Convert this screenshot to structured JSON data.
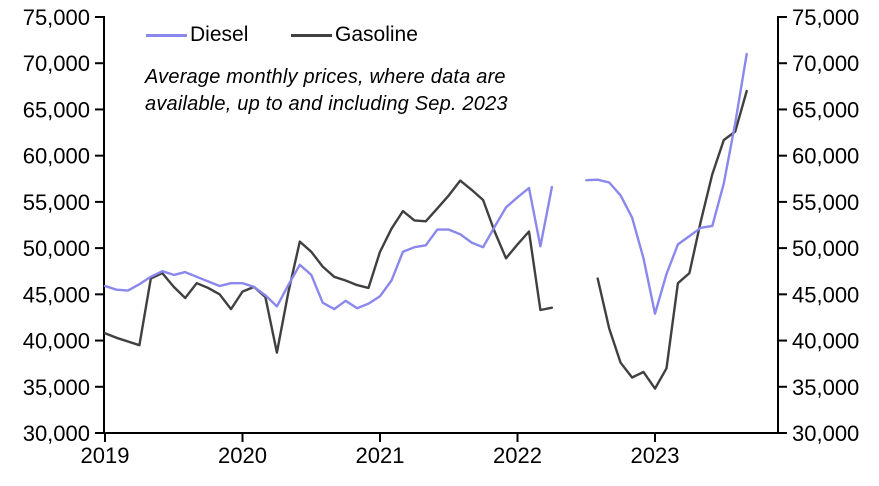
{
  "chart_data": {
    "type": "line",
    "title": "",
    "legend": [
      {
        "label": "Diesel",
        "color": "#8b88ed"
      },
      {
        "label": "Gasoline",
        "color": "#404040"
      }
    ],
    "annotation": {
      "line1": "Average monthly prices, where data are",
      "line2": "available, up to and including Sep. 2023"
    },
    "axes": {
      "y_min": 30000,
      "y_max": 75000,
      "y_tick_step": 5000,
      "y_axis_sides": "left and right",
      "grid": false,
      "y_ticks": [
        {
          "value": 30000,
          "label": "30,000"
        },
        {
          "value": 35000,
          "label": "35,000"
        },
        {
          "value": 40000,
          "label": "40,000"
        },
        {
          "value": 45000,
          "label": "45,000"
        },
        {
          "value": 50000,
          "label": "50,000"
        },
        {
          "value": 55000,
          "label": "55,000"
        },
        {
          "value": 60000,
          "label": "60,000"
        },
        {
          "value": 65000,
          "label": "65,000"
        },
        {
          "value": 70000,
          "label": "70,000"
        },
        {
          "value": 75000,
          "label": "75,000"
        }
      ],
      "x_ticks": [
        {
          "month": "2019-01",
          "label": "2019"
        },
        {
          "month": "2020-01",
          "label": "2020"
        },
        {
          "month": "2021-01",
          "label": "2021"
        },
        {
          "month": "2022-01",
          "label": "2022"
        },
        {
          "month": "2023-01",
          "label": "2023"
        }
      ]
    },
    "series": [
      {
        "name": "Diesel",
        "color": "#8b88ed",
        "segments": [
          {
            "start": "2019-01",
            "values": [
              45900,
              45500,
              45400,
              46100,
              46900,
              47500,
              47100,
              47400,
              46900,
              46400,
              45900,
              46200,
              46200,
              45800,
              44900,
              43700,
              46000,
              48200,
              47100,
              44100,
              43400,
              44300,
              43500,
              44000,
              44800,
              46500,
              49600,
              50100,
              50300,
              52000,
              52000,
              51500,
              50600,
              50100,
              52300,
              54400,
              55500,
              56500,
              50200,
              56600
            ]
          },
          {
            "start": "2022-07",
            "values": [
              57350,
              57400,
              57100,
              55700,
              53300,
              48900,
              42900,
              47200,
              50400,
              51300,
              52200,
              52400,
              57000,
              63500,
              71000
            ]
          }
        ]
      },
      {
        "name": "Gasoline",
        "color": "#404040",
        "segments": [
          {
            "start": "2019-01",
            "values": [
              40800,
              40300,
              39900,
              39500,
              46700,
              47300,
              45800,
              44600,
              46200,
              45700,
              45000,
              43400,
              45300,
              45800,
              44700,
              38700,
              45200,
              50700,
              49600,
              48000,
              46900,
              46500,
              46000,
              45700,
              49600,
              52100,
              54000,
              53000,
              52900,
              54300,
              55700,
              57300,
              56300,
              55200,
              51800,
              48900,
              50400,
              51800,
              43300,
              43550
            ]
          },
          {
            "start": "2022-08",
            "values": [
              46700,
              41300,
              37600,
              36000,
              36600,
              34800,
              37000,
              46200,
              47300,
              52900,
              58000,
              61700,
              62600,
              67000
            ]
          }
        ]
      }
    ]
  }
}
